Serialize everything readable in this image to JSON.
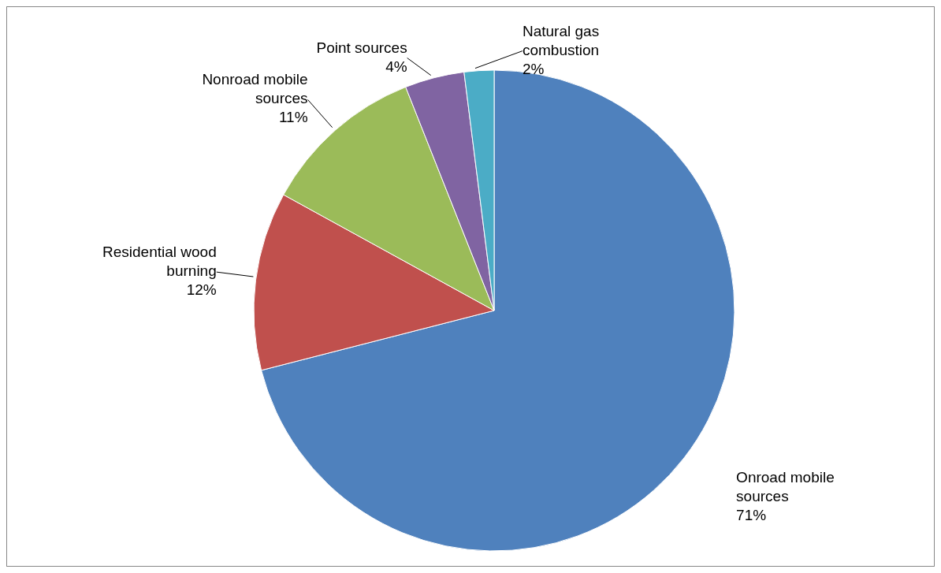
{
  "chart_data": {
    "type": "pie",
    "categories": [
      "Onroad mobile sources",
      "Residential wood burning",
      "Nonroad mobile sources",
      "Point sources",
      "Natural gas combustion"
    ],
    "values": [
      71,
      12,
      11,
      4,
      2
    ],
    "value_labels": [
      "71%",
      "12%",
      "11%",
      "4%",
      "2%"
    ],
    "colors": [
      "#4f81bd",
      "#c0504d",
      "#9bbb59",
      "#8064a2",
      "#4bacc6"
    ],
    "legend": false
  }
}
